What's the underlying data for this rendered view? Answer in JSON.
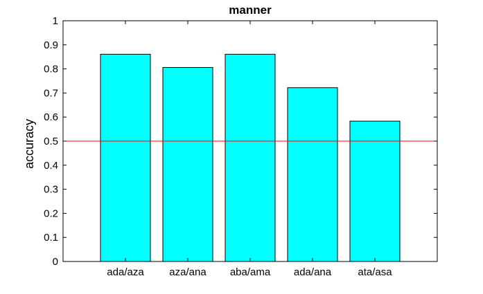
{
  "chart_data": {
    "type": "bar",
    "title": "manner",
    "xlabel": "",
    "ylabel": "accuracy",
    "categories": [
      "ada/aza",
      "aza/ana",
      "aba/ama",
      "ada/ana",
      "ata/asa"
    ],
    "values": [
      0.861,
      0.806,
      0.861,
      0.722,
      0.583
    ],
    "ylim": [
      0,
      1
    ],
    "yticks": [
      "0",
      "0.1",
      "0.2",
      "0.3",
      "0.4",
      "0.5",
      "0.6",
      "0.7",
      "0.8",
      "0.9",
      "1"
    ],
    "reference_line": {
      "y": 0.5,
      "color": "#ff0000"
    },
    "bar_color": "#00ffff",
    "bar_edge_color": "#000000",
    "grid": false,
    "legend": "none"
  }
}
